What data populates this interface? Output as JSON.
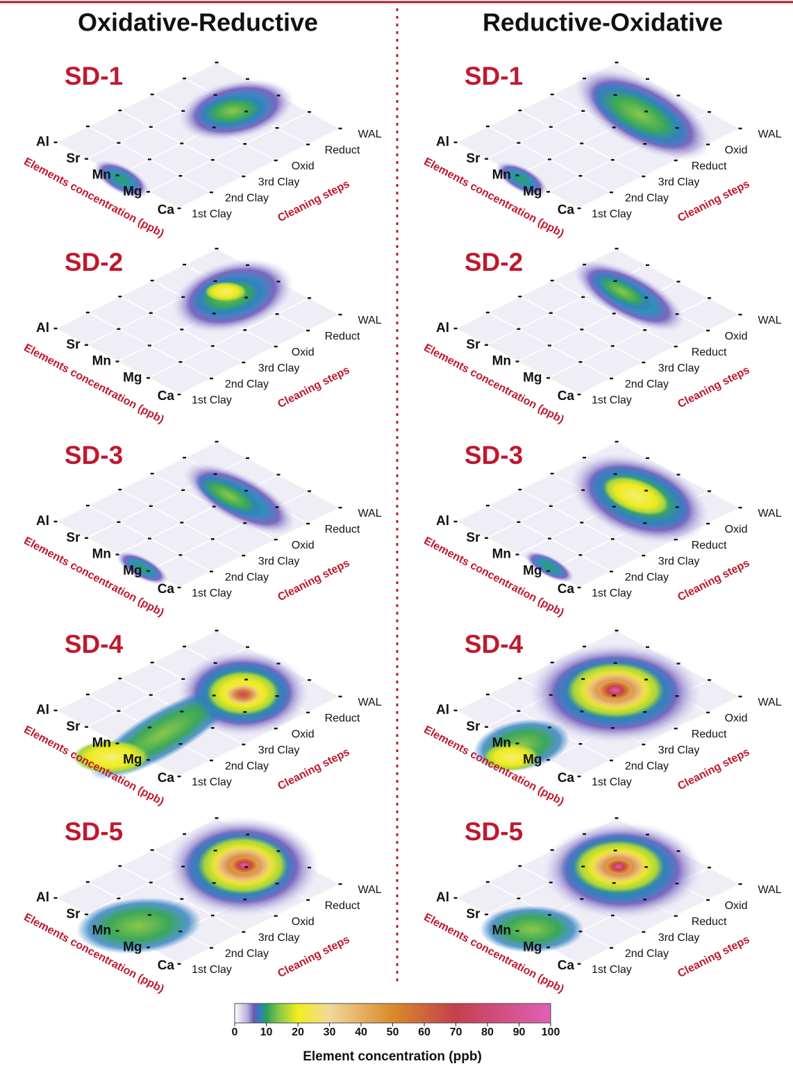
{
  "chart_data": {
    "type": "contour-panels",
    "columns": [
      {
        "title": "Oxidative-Reductive",
        "steps": [
          "1st Clay",
          "2nd Clay",
          "3rd Clay",
          "Oxid",
          "Reduct",
          "WAL"
        ],
        "panels": [
          "SD-1",
          "SD-2",
          "SD-3",
          "SD-4",
          "SD-5"
        ]
      },
      {
        "title": "Reductive-Oxidative",
        "steps": [
          "1st Clay",
          "2nd Clay",
          "3rd Clay",
          "Reduct",
          "Oxid",
          "WAL"
        ],
        "panels": [
          "SD-1",
          "SD-2",
          "SD-3",
          "SD-4",
          "SD-5"
        ]
      }
    ],
    "elements": [
      "Al",
      "Sr",
      "Mn",
      "Mg",
      "Ca"
    ],
    "element_axis_label": "Elements concentration (ppb)",
    "step_axis_label": "Cleaning steps",
    "colorbar": {
      "title": "Element concentration (ppb)",
      "zlim": [
        0,
        100
      ],
      "zticks": [
        0,
        10,
        20,
        30,
        40,
        50,
        60,
        70,
        80,
        90,
        100
      ],
      "colorscale": [
        [
          0,
          "#ffffff"
        ],
        [
          4,
          "#b7b0dc"
        ],
        [
          6,
          "#6a58b0"
        ],
        [
          8,
          "#2f7fc8"
        ],
        [
          10,
          "#2aa05a"
        ],
        [
          14,
          "#86c84a"
        ],
        [
          20,
          "#f2ee1a"
        ],
        [
          30,
          "#f1d89a"
        ],
        [
          50,
          "#d98a2a"
        ],
        [
          70,
          "#c4404e"
        ],
        [
          100,
          "#e060b8"
        ]
      ]
    }
  }
}
